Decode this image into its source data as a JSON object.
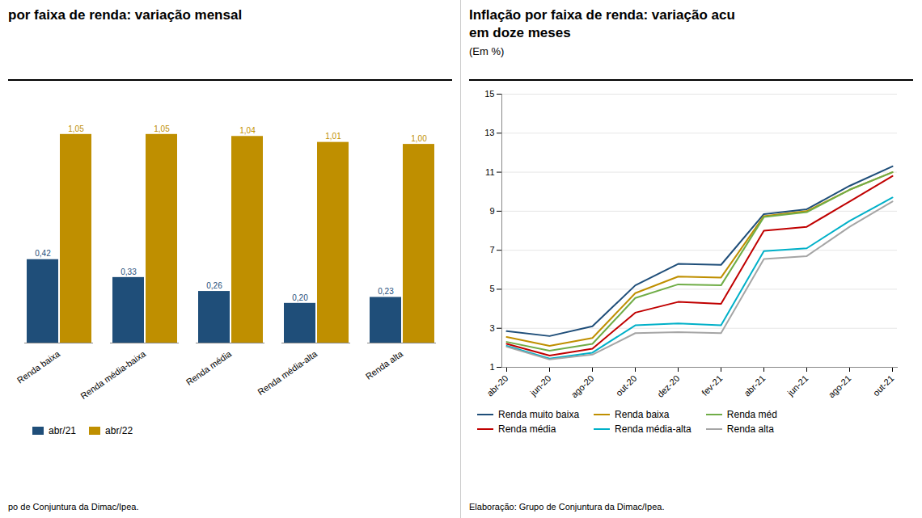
{
  "chart_data": [
    {
      "type": "bar",
      "title": "por faixa de renda: variação mensal",
      "source": "po de Conjuntura da Dimac/Ipea.",
      "categories": [
        "Renda baixa",
        "Renda média-baixa",
        "Renda média",
        "Renda média-alta",
        "Renda alta"
      ],
      "series": [
        {
          "name": "abr/21",
          "color": "#1F4E79",
          "values": [
            0.42,
            0.33,
            0.26,
            0.2,
            0.23
          ],
          "value_labels": [
            "0,42",
            "0,33",
            "0,26",
            "0,20",
            "0,23"
          ]
        },
        {
          "name": "abr/22",
          "color": "#BF8F00",
          "values": [
            1.05,
            1.05,
            1.04,
            1.01,
            1.0
          ],
          "value_labels": [
            "1,05",
            "1,05",
            "1,04",
            "1,01",
            "1,00"
          ]
        }
      ],
      "ylim": [
        0,
        1.22
      ],
      "data_labels": true,
      "tick_labels": "x",
      "legend": "bottom"
    },
    {
      "type": "line",
      "title": "Inflação por faixa de renda: variação acu\nem doze meses",
      "subtitle": "(Em %)",
      "source": "Elaboração: Grupo de Conjuntura da Dimac/Ipea.",
      "categories": [
        "abr-20",
        "jun-20",
        "ago-20",
        "out-20",
        "dez-20",
        "fev-21",
        "abr-21",
        "jun-21",
        "ago-21",
        "out-21"
      ],
      "series": [
        {
          "name": "Renda muito baixa",
          "color": "#1F4E79",
          "values": [
            2.85,
            2.6,
            3.1,
            5.2,
            6.3,
            6.25,
            8.85,
            9.1,
            10.3,
            11.3
          ]
        },
        {
          "name": "Renda baixa",
          "color": "#BF8F00",
          "values": [
            2.55,
            2.1,
            2.5,
            4.8,
            5.65,
            5.6,
            8.75,
            9.0,
            10.1,
            11.0
          ]
        },
        {
          "name": "Renda méd",
          "color": "#70AD47",
          "values": [
            2.3,
            1.85,
            2.2,
            4.55,
            5.25,
            5.2,
            8.7,
            8.95,
            10.1,
            11.0
          ]
        },
        {
          "name": "Renda média",
          "color": "#C00000",
          "values": [
            2.2,
            1.6,
            1.95,
            3.8,
            4.35,
            4.25,
            8.0,
            8.2,
            9.5,
            10.8
          ]
        },
        {
          "name": "Renda média-alta",
          "color": "#00B0C8",
          "values": [
            2.1,
            1.45,
            1.75,
            3.15,
            3.25,
            3.15,
            6.95,
            7.1,
            8.5,
            9.7
          ]
        },
        {
          "name": "Renda alta",
          "color": "#A5A5A5",
          "values": [
            2.05,
            1.4,
            1.65,
            2.75,
            2.8,
            2.75,
            6.55,
            6.7,
            8.2,
            9.5
          ]
        }
      ],
      "ylim": [
        1,
        15
      ],
      "yticks": [
        1,
        3,
        5,
        7,
        9,
        11,
        13,
        15
      ],
      "grid": true,
      "legend": "bottom"
    }
  ]
}
